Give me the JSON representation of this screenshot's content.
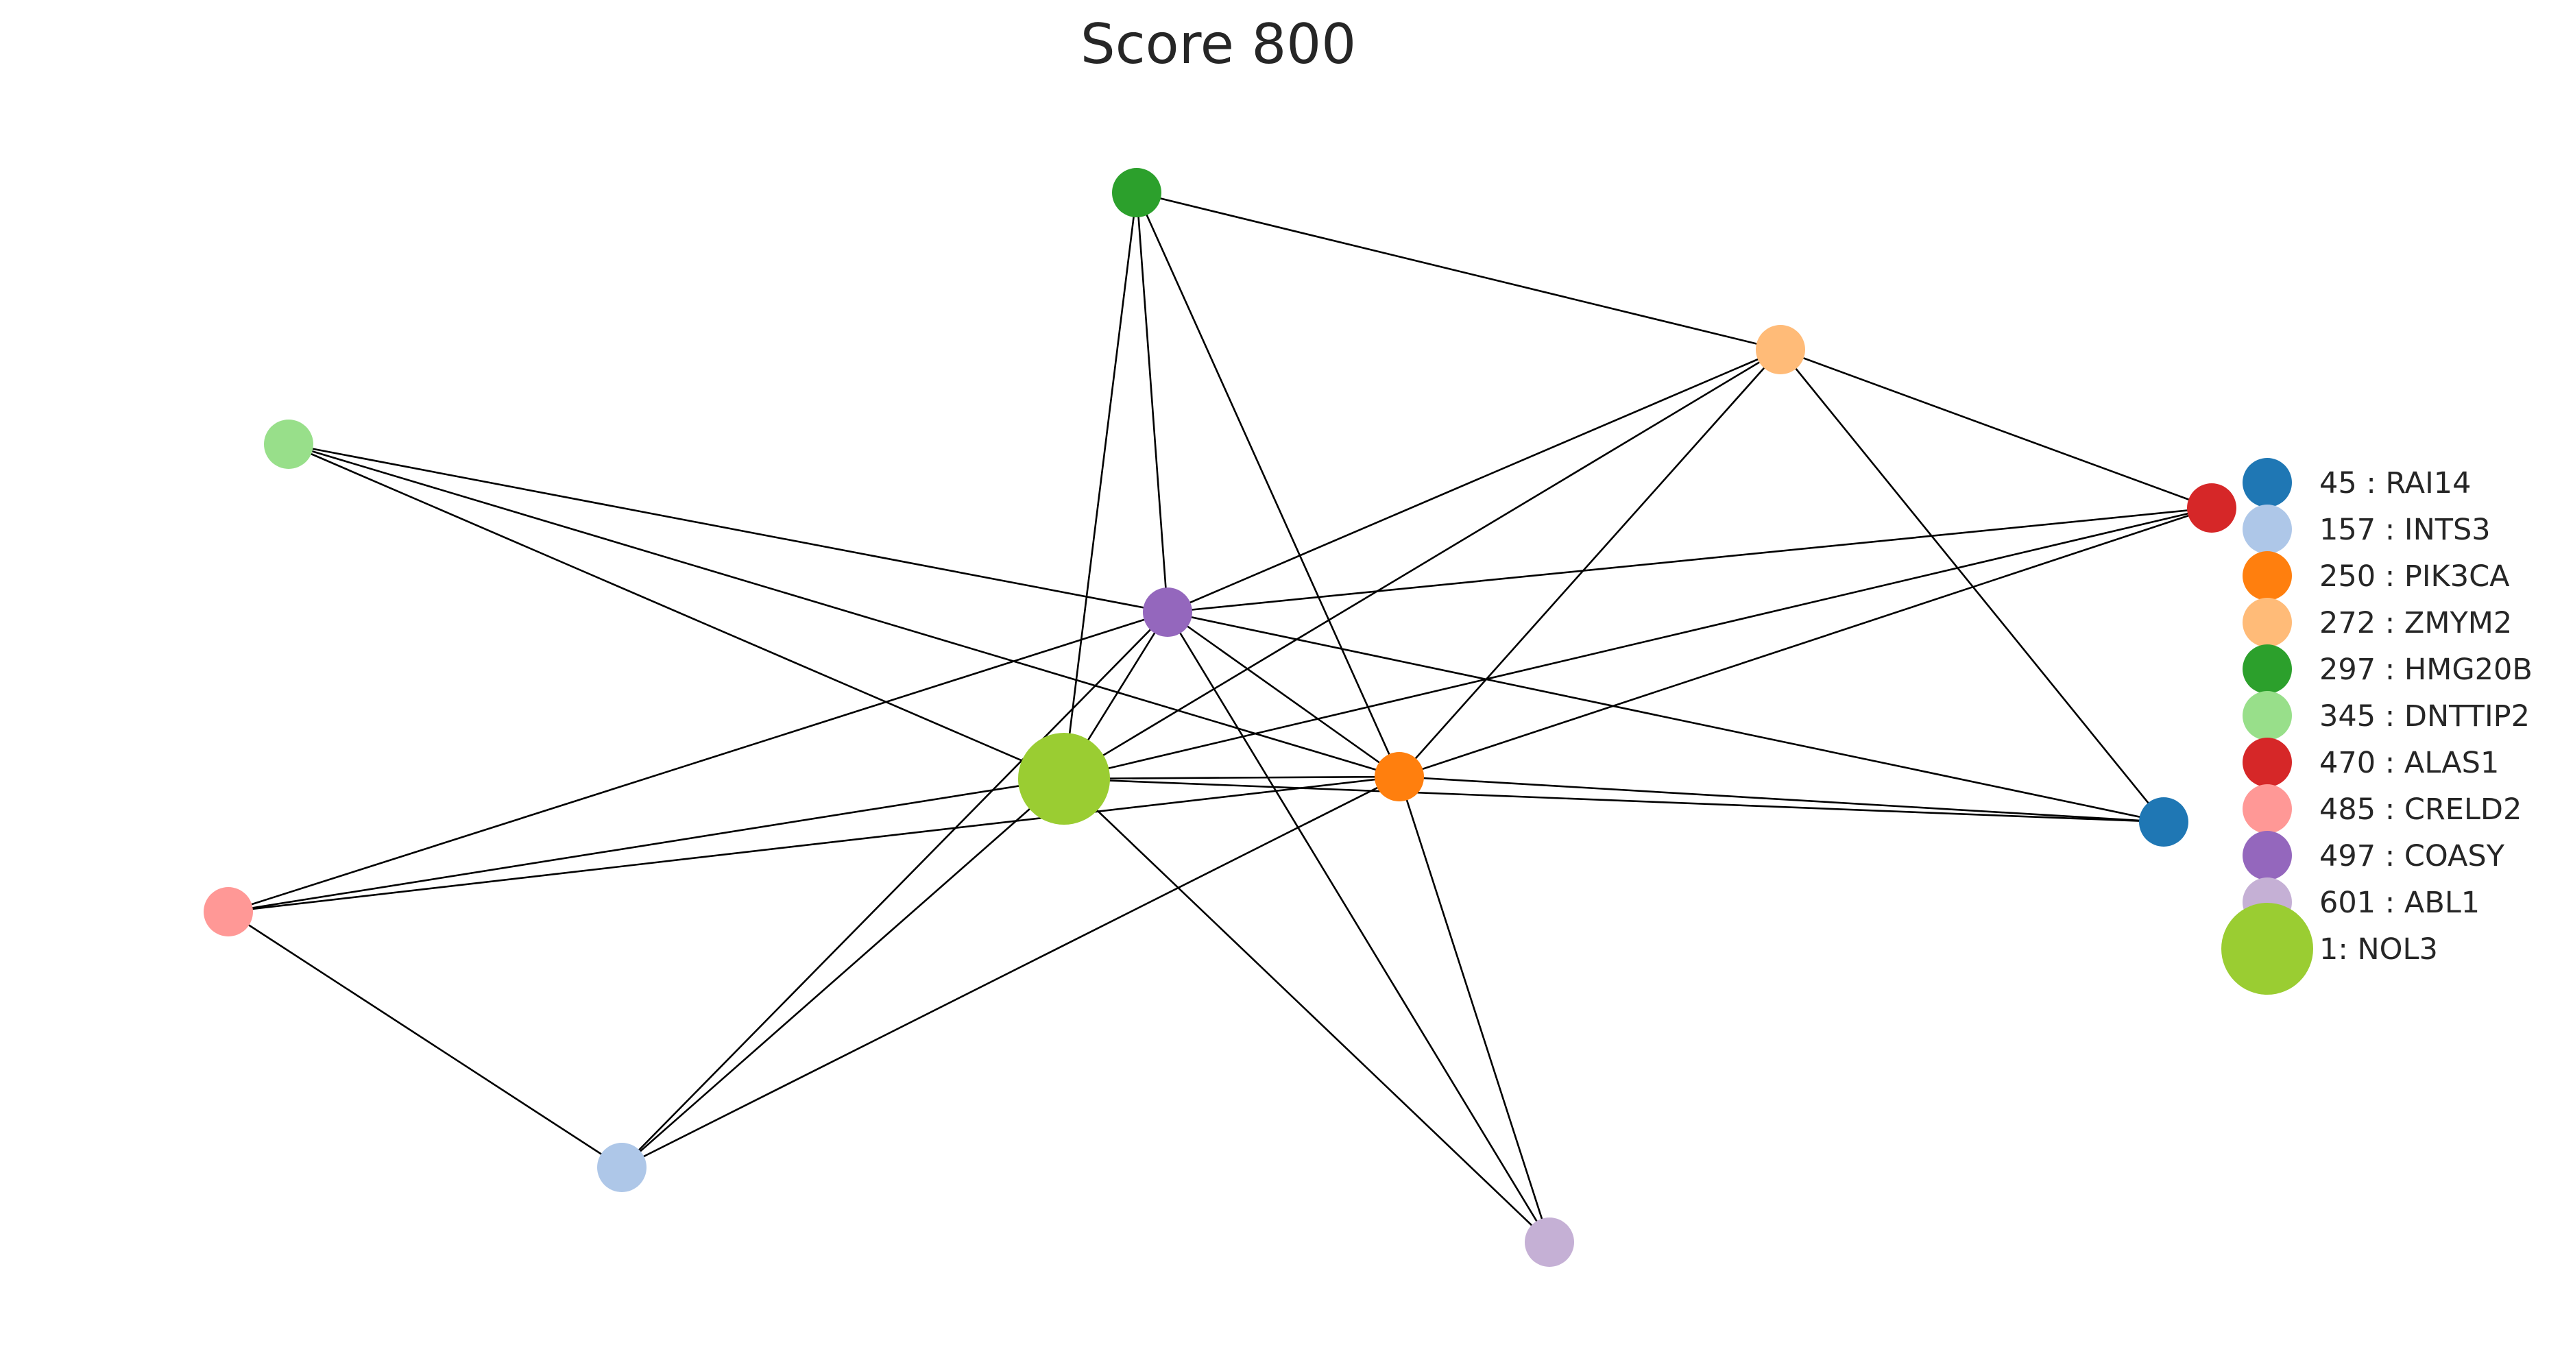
{
  "title": "Score 800",
  "nodes": [
    {
      "id": "RAI14",
      "color": "#1f77b4"
    },
    {
      "id": "INTS3",
      "color": "#aec7e8"
    },
    {
      "id": "PIK3CA",
      "color": "#ff7f0e"
    },
    {
      "id": "ZMYM2",
      "color": "#ffbb78"
    },
    {
      "id": "HMG20B",
      "color": "#2ca02c"
    },
    {
      "id": "DNTTIP2",
      "color": "#98df8a"
    },
    {
      "id": "ALAS1",
      "color": "#d62728"
    },
    {
      "id": "CRELD2",
      "color": "#ff9896"
    },
    {
      "id": "COASY",
      "color": "#9467bd"
    },
    {
      "id": "ABL1",
      "color": "#c5b0d5"
    },
    {
      "id": "NOL3",
      "color": "#9acd32",
      "center": true
    }
  ],
  "edges": [
    [
      "HMG20B",
      "ZMYM2"
    ],
    [
      "HMG20B",
      "COASY"
    ],
    [
      "HMG20B",
      "NOL3"
    ],
    [
      "HMG20B",
      "PIK3CA"
    ],
    [
      "ZMYM2",
      "ALAS1"
    ],
    [
      "ZMYM2",
      "COASY"
    ],
    [
      "ZMYM2",
      "NOL3"
    ],
    [
      "ZMYM2",
      "PIK3CA"
    ],
    [
      "ZMYM2",
      "RAI14"
    ],
    [
      "DNTTIP2",
      "COASY"
    ],
    [
      "DNTTIP2",
      "NOL3"
    ],
    [
      "DNTTIP2",
      "PIK3CA"
    ],
    [
      "ALAS1",
      "COASY"
    ],
    [
      "ALAS1",
      "NOL3"
    ],
    [
      "ALAS1",
      "PIK3CA"
    ],
    [
      "COASY",
      "NOL3"
    ],
    [
      "COASY",
      "PIK3CA"
    ],
    [
      "COASY",
      "RAI14"
    ],
    [
      "COASY",
      "CRELD2"
    ],
    [
      "COASY",
      "INTS3"
    ],
    [
      "COASY",
      "ABL1"
    ],
    [
      "NOL3",
      "PIK3CA"
    ],
    [
      "NOL3",
      "RAI14"
    ],
    [
      "NOL3",
      "CRELD2"
    ],
    [
      "NOL3",
      "INTS3"
    ],
    [
      "NOL3",
      "ABL1"
    ],
    [
      "PIK3CA",
      "RAI14"
    ],
    [
      "PIK3CA",
      "CRELD2"
    ],
    [
      "PIK3CA",
      "INTS3"
    ],
    [
      "PIK3CA",
      "ABL1"
    ],
    [
      "CRELD2",
      "INTS3"
    ]
  ],
  "legend": [
    {
      "label": "45 : RAI14",
      "color": "#1f77b4"
    },
    {
      "label": "157 : INTS3",
      "color": "#aec7e8"
    },
    {
      "label": "250 : PIK3CA",
      "color": "#ff7f0e"
    },
    {
      "label": "272 : ZMYM2",
      "color": "#ffbb78"
    },
    {
      "label": "297 : HMG20B",
      "color": "#2ca02c"
    },
    {
      "label": "345 : DNTTIP2",
      "color": "#98df8a"
    },
    {
      "label": "470 : ALAS1",
      "color": "#d62728"
    },
    {
      "label": "485 : CRELD2",
      "color": "#ff9896"
    },
    {
      "label": "497 : COASY",
      "color": "#9467bd"
    },
    {
      "label": "601 : ABL1",
      "color": "#c5b0d5"
    },
    {
      "label": "1: NOL3",
      "color": "#9acd32",
      "large": true
    }
  ]
}
